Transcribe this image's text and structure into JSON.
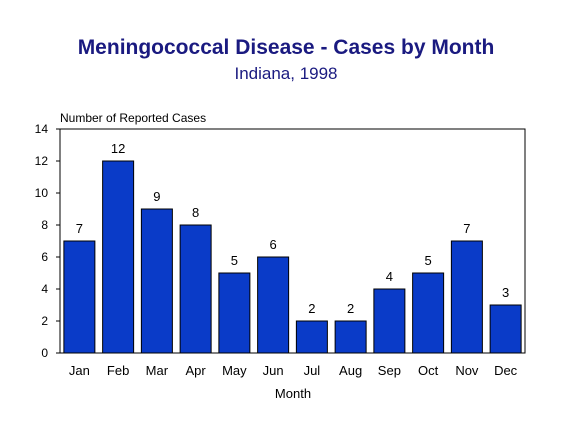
{
  "chart_data": {
    "type": "bar",
    "title": "Meningococcal Disease - Cases by Month",
    "subtitle": "Indiana, 1998",
    "xlabel": "Month",
    "ylabel": "Number of Reported Cases",
    "categories": [
      "Jan",
      "Feb",
      "Mar",
      "Apr",
      "May",
      "Jun",
      "Jul",
      "Aug",
      "Sep",
      "Oct",
      "Nov",
      "Dec"
    ],
    "values": [
      7,
      12,
      9,
      8,
      5,
      6,
      2,
      2,
      4,
      5,
      7,
      3
    ],
    "ylim": [
      0,
      14
    ],
    "yticks": [
      0,
      2,
      4,
      6,
      8,
      10,
      12,
      14
    ],
    "grid": false,
    "data_labels": true,
    "bar_color": "#0a3bc8"
  }
}
